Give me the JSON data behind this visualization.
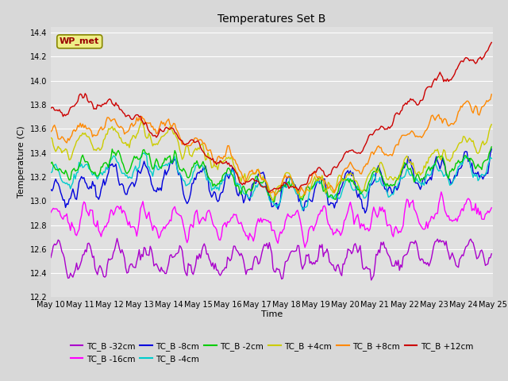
{
  "title": "Temperatures Set B",
  "xlabel": "Time",
  "ylabel": "Temperature (C)",
  "ylim": [
    12.2,
    14.45
  ],
  "xlim": [
    0,
    360
  ],
  "fig_facecolor": "#d8d8d8",
  "plot_bg_color": "#e0e0e0",
  "series": [
    {
      "label": "TC_B -32cm",
      "color": "#aa00cc"
    },
    {
      "label": "TC_B -16cm",
      "color": "#ff00ff"
    },
    {
      "label": "TC_B -8cm",
      "color": "#0000dd"
    },
    {
      "label": "TC_B -4cm",
      "color": "#00cccc"
    },
    {
      "label": "TC_B -2cm",
      "color": "#00cc00"
    },
    {
      "label": "TC_B +4cm",
      "color": "#cccc00"
    },
    {
      "label": "TC_B +8cm",
      "color": "#ff8800"
    },
    {
      "label": "TC_B +12cm",
      "color": "#cc0000"
    }
  ],
  "wp_met_box_facecolor": "#eeee88",
  "wp_met_box_edgecolor": "#888800",
  "wp_met_text_color": "#990000",
  "n_points": 360,
  "x_tick_labels": [
    "May 10",
    "May 11",
    "May 12",
    "May 13",
    "May 14",
    "May 15",
    "May 16",
    "May 17",
    "May 18",
    "May 19",
    "May 20",
    "May 21",
    "May 22",
    "May 23",
    "May 24",
    "May 25"
  ],
  "x_tick_positions": [
    0,
    24,
    48,
    72,
    96,
    120,
    144,
    168,
    192,
    216,
    240,
    264,
    288,
    312,
    336,
    360
  ],
  "yticks": [
    12.2,
    12.4,
    12.6,
    12.8,
    13.0,
    13.2,
    13.4,
    13.6,
    13.8,
    14.0,
    14.2,
    14.4
  ],
  "grid_color": "#ffffff",
  "linewidth": 1.0,
  "title_fontsize": 10,
  "tick_fontsize": 7,
  "ylabel_fontsize": 8,
  "xlabel_fontsize": 8,
  "legend_fontsize": 7.5
}
